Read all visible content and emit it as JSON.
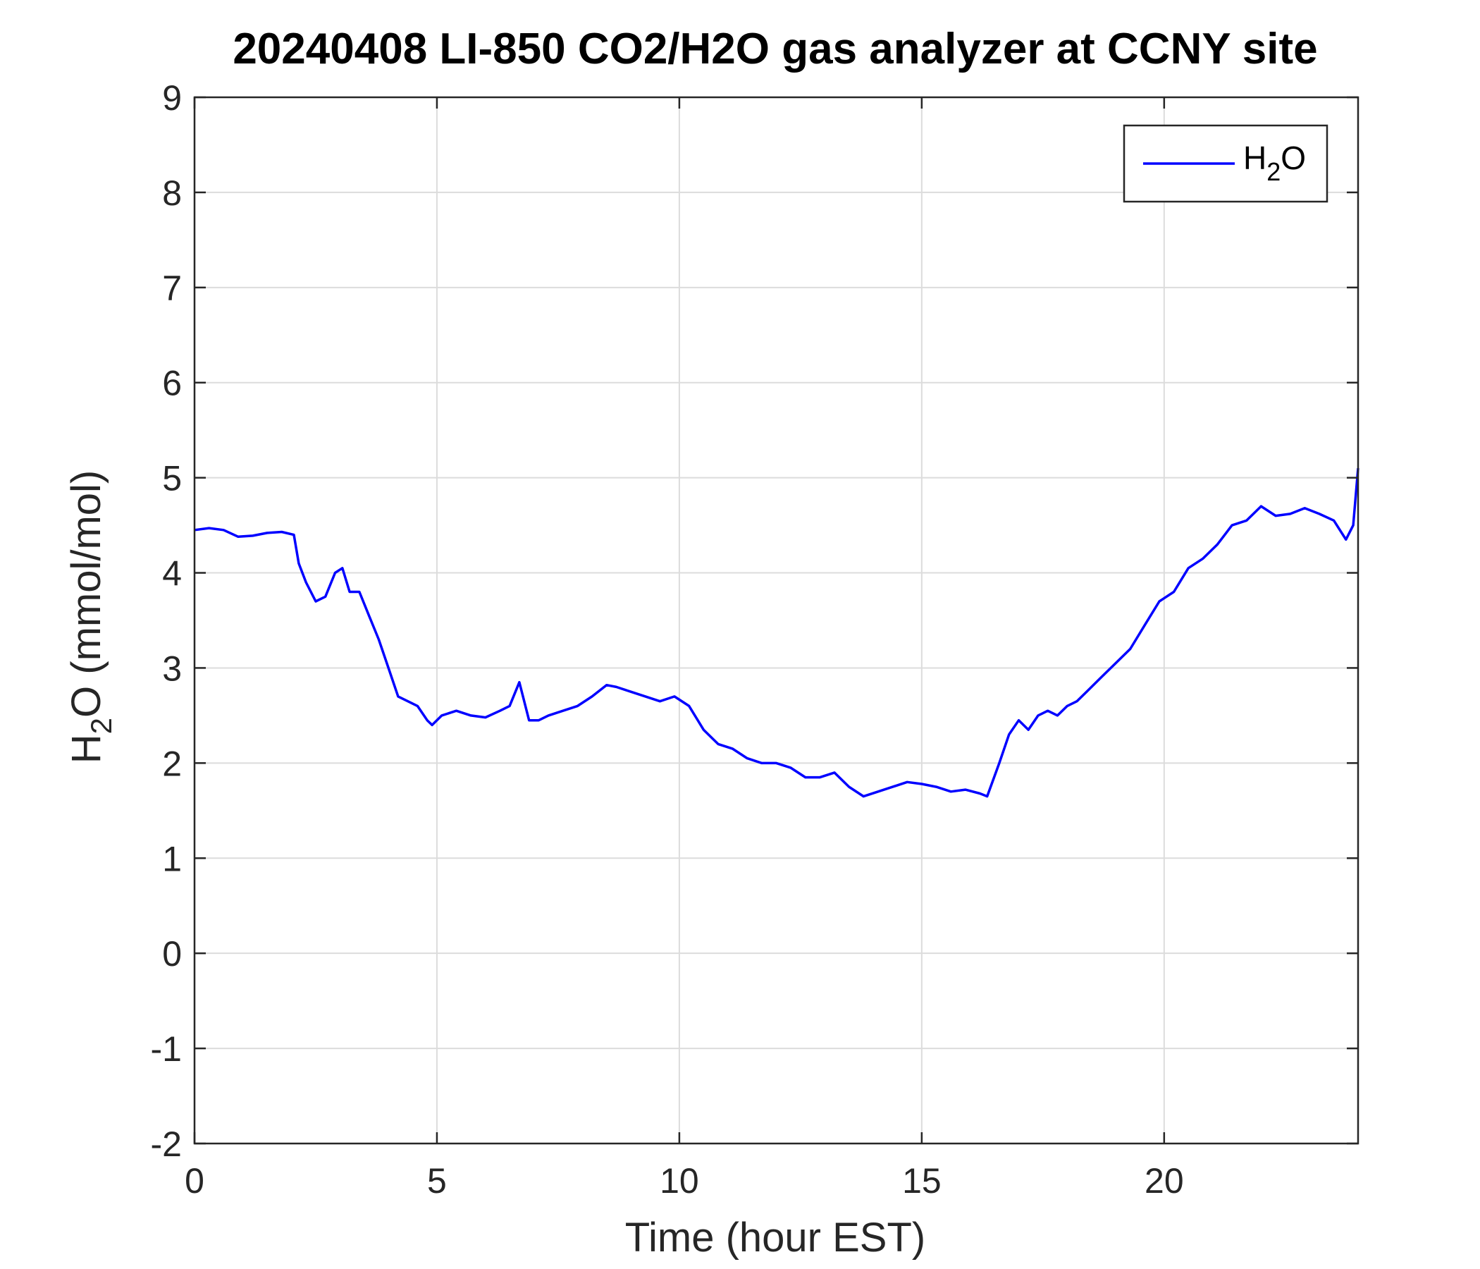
{
  "chart_data": {
    "type": "line",
    "title": "20240408 LI-850 CO2/H2O gas analyzer at CCNY site",
    "xlabel": "Time (hour EST)",
    "ylabel": {
      "main": "H",
      "sub": "2",
      "rest": "O (mmol/mol)"
    },
    "xlim": [
      0,
      24
    ],
    "ylim": [
      -2,
      9
    ],
    "xticks": [
      0,
      5,
      10,
      15,
      20
    ],
    "yticks": [
      -2,
      -1,
      0,
      1,
      2,
      3,
      4,
      5,
      6,
      7,
      8,
      9
    ],
    "grid": true,
    "legend": {
      "position": "top-right",
      "entries": [
        {
          "main": "H",
          "sub": "2",
          "rest": "O"
        }
      ]
    },
    "series": [
      {
        "color": "#0000ff",
        "x": [
          0,
          0.3,
          0.6,
          0.9,
          1.2,
          1.5,
          1.8,
          2.05,
          2.15,
          2.3,
          2.5,
          2.7,
          2.9,
          3.05,
          3.2,
          3.4,
          3.6,
          3.8,
          4.0,
          4.2,
          4.4,
          4.6,
          4.8,
          4.9,
          5.1,
          5.4,
          5.7,
          6.0,
          6.3,
          6.5,
          6.7,
          6.9,
          7.1,
          7.3,
          7.6,
          7.9,
          8.2,
          8.5,
          8.7,
          9.0,
          9.3,
          9.6,
          9.9,
          10.2,
          10.5,
          10.8,
          11.1,
          11.4,
          11.7,
          12.0,
          12.3,
          12.6,
          12.9,
          13.2,
          13.5,
          13.8,
          14.1,
          14.4,
          14.7,
          15.0,
          15.3,
          15.6,
          15.9,
          16.2,
          16.35,
          16.6,
          16.8,
          17.0,
          17.2,
          17.4,
          17.6,
          17.8,
          18.0,
          18.2,
          18.4,
          18.7,
          19.0,
          19.3,
          19.6,
          19.9,
          20.2,
          20.5,
          20.8,
          21.1,
          21.4,
          21.7,
          22.0,
          22.3,
          22.6,
          22.9,
          23.2,
          23.5,
          23.75,
          23.9,
          24.0
        ],
        "y": [
          4.45,
          4.47,
          4.45,
          4.38,
          4.39,
          4.42,
          4.43,
          4.4,
          4.1,
          3.9,
          3.7,
          3.75,
          4.0,
          4.05,
          3.8,
          3.8,
          3.55,
          3.3,
          3.0,
          2.7,
          2.65,
          2.6,
          2.45,
          2.4,
          2.5,
          2.55,
          2.5,
          2.48,
          2.55,
          2.6,
          2.85,
          2.45,
          2.45,
          2.5,
          2.55,
          2.6,
          2.7,
          2.82,
          2.8,
          2.75,
          2.7,
          2.65,
          2.7,
          2.6,
          2.35,
          2.2,
          2.15,
          2.05,
          2.0,
          2.0,
          1.95,
          1.85,
          1.85,
          1.9,
          1.75,
          1.65,
          1.7,
          1.75,
          1.8,
          1.78,
          1.75,
          1.7,
          1.72,
          1.68,
          1.65,
          2.0,
          2.3,
          2.45,
          2.35,
          2.5,
          2.55,
          2.5,
          2.6,
          2.65,
          2.75,
          2.9,
          3.05,
          3.2,
          3.45,
          3.7,
          3.8,
          4.05,
          4.15,
          4.3,
          4.5,
          4.55,
          4.7,
          4.6,
          4.62,
          4.68,
          4.62,
          4.55,
          4.35,
          4.5,
          5.1
        ]
      }
    ]
  }
}
